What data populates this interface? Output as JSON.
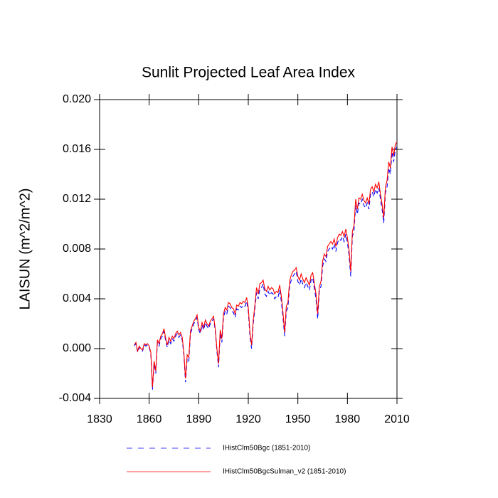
{
  "chart_data": {
    "type": "line",
    "title": "Sunlit Projected Leaf Area Index",
    "ylabel": "LAISUN  (m^2/m^2)",
    "xlim": [
      1830,
      2010
    ],
    "xticks": [
      1830,
      1860,
      1890,
      1920,
      1950,
      1980,
      2010
    ],
    "ylim": [
      -0.004,
      0.02
    ],
    "yticks": [
      -0.004,
      {
        "value": 0,
        "label": "0.000"
      },
      0.004,
      0.008,
      0.012,
      0.016,
      {
        "value": 0.02,
        "label": "0.020"
      }
    ],
    "legend": "bottom",
    "x": [
      1851,
      1852,
      1853,
      1854,
      1855,
      1856,
      1857,
      1858,
      1859,
      1860,
      1861,
      1862,
      1863,
      1864,
      1865,
      1866,
      1867,
      1868,
      1869,
      1870,
      1871,
      1872,
      1873,
      1874,
      1875,
      1876,
      1877,
      1878,
      1879,
      1880,
      1881,
      1882,
      1883,
      1884,
      1885,
      1886,
      1887,
      1888,
      1889,
      1890,
      1891,
      1892,
      1893,
      1894,
      1895,
      1896,
      1897,
      1898,
      1899,
      1900,
      1901,
      1902,
      1903,
      1904,
      1905,
      1906,
      1907,
      1908,
      1909,
      1910,
      1911,
      1912,
      1913,
      1914,
      1915,
      1916,
      1917,
      1918,
      1919,
      1920,
      1921,
      1922,
      1923,
      1924,
      1925,
      1926,
      1927,
      1928,
      1929,
      1930,
      1931,
      1932,
      1933,
      1934,
      1935,
      1936,
      1937,
      1938,
      1939,
      1940,
      1941,
      1942,
      1943,
      1944,
      1945,
      1946,
      1947,
      1948,
      1949,
      1950,
      1951,
      1952,
      1953,
      1954,
      1955,
      1956,
      1957,
      1958,
      1959,
      1960,
      1961,
      1962,
      1963,
      1964,
      1965,
      1966,
      1967,
      1968,
      1969,
      1970,
      1971,
      1972,
      1973,
      1974,
      1975,
      1976,
      1977,
      1978,
      1979,
      1980,
      1981,
      1982,
      1983,
      1984,
      1985,
      1986,
      1987,
      1988,
      1989,
      1990,
      1991,
      1992,
      1993,
      1994,
      1995,
      1996,
      1997,
      1998,
      1999,
      2000,
      2001,
      2002,
      2003,
      2004,
      2005,
      2006,
      2007,
      2008,
      2009,
      2010
    ],
    "series": [
      {
        "name": "IHistClm50Bgc (1851-2010)",
        "color": "#0000ff",
        "line_style": "dashed",
        "values": [
          0.0002,
          0.0004,
          -0.0003,
          0.0001,
          -0.0001,
          -0.0002,
          0.0003,
          0.0002,
          0.0003,
          0.0001,
          -0.0004,
          -0.0033,
          -0.0012,
          -0.002,
          0.0005,
          0.0002,
          0.0008,
          0.001,
          0.0014,
          0.0006,
          0.0001,
          0.0007,
          0.0004,
          0.0008,
          0.0006,
          0.001,
          0.0012,
          0.0009,
          0.0011,
          0.0007,
          -0.0005,
          -0.0027,
          -0.0008,
          -0.001,
          0.0012,
          0.0016,
          0.002,
          0.0022,
          0.0025,
          0.0015,
          0.0012,
          0.0019,
          0.0015,
          0.0021,
          0.0018,
          0.0016,
          0.002,
          0.0022,
          0.0024,
          0.0014,
          -0.0002,
          -0.0015,
          0.0012,
          0.0005,
          0.0025,
          0.003,
          0.0028,
          0.0034,
          0.0033,
          0.003,
          0.0029,
          0.0025,
          0.0032,
          0.0031,
          0.0034,
          0.0033,
          0.0035,
          0.0034,
          0.0038,
          0.003,
          0.001,
          0.0,
          0.002,
          0.0032,
          0.0045,
          0.004,
          0.0048,
          0.0049,
          0.0052,
          0.0044,
          0.0042,
          0.0046,
          0.0043,
          0.0045,
          0.0044,
          0.004,
          0.0042,
          0.0041,
          0.0047,
          0.0038,
          0.0025,
          0.001,
          0.003,
          0.0033,
          0.005,
          0.0055,
          0.0058,
          0.006,
          0.0062,
          0.0054,
          0.0051,
          0.0056,
          0.0052,
          0.0049,
          0.0053,
          0.005,
          0.0047,
          0.0055,
          0.0057,
          0.0048,
          0.004,
          0.0024,
          0.0046,
          0.005,
          0.0066,
          0.0072,
          0.007,
          0.0078,
          0.008,
          0.0082,
          0.008,
          0.0084,
          0.0078,
          0.0085,
          0.0088,
          0.0087,
          0.009,
          0.0086,
          0.0092,
          0.0085,
          0.0075,
          0.0058,
          0.009,
          0.0095,
          0.0115,
          0.0108,
          0.0117,
          0.0116,
          0.012,
          0.0115,
          0.0113,
          0.0117,
          0.0112,
          0.0124,
          0.0126,
          0.0122,
          0.0128,
          0.0125,
          0.0129,
          0.012,
          0.0112,
          0.0101,
          0.0125,
          0.013,
          0.0145,
          0.014,
          0.0158,
          0.015,
          0.016,
          0.0162
        ]
      },
      {
        "name": "IHistClm50BgcSulman_v2 (1851-2010)",
        "color": "#ff0000",
        "line_style": "solid",
        "values": [
          0.0003,
          0.0005,
          -0.0002,
          0.0002,
          0.0,
          -0.0001,
          0.0004,
          0.0003,
          0.0004,
          0.0002,
          -0.0003,
          -0.0031,
          -0.001,
          -0.0018,
          0.0007,
          0.0004,
          0.001,
          0.0012,
          0.0016,
          0.0008,
          0.0003,
          0.0009,
          0.0006,
          0.001,
          0.0008,
          0.0012,
          0.0014,
          0.0011,
          0.0013,
          0.0009,
          -0.0003,
          -0.0024,
          -0.0005,
          -0.0007,
          0.0014,
          0.0018,
          0.0022,
          0.0024,
          0.0027,
          0.0017,
          0.0014,
          0.0021,
          0.0017,
          0.0023,
          0.002,
          0.0018,
          0.0022,
          0.0024,
          0.0026,
          0.0016,
          0.0,
          -0.0012,
          0.0015,
          0.0008,
          0.0028,
          0.0033,
          0.0031,
          0.0037,
          0.0036,
          0.0033,
          0.0032,
          0.0028,
          0.0035,
          0.0034,
          0.0037,
          0.0036,
          0.0038,
          0.0037,
          0.0041,
          0.0033,
          0.0013,
          0.0003,
          0.0023,
          0.0035,
          0.0049,
          0.0044,
          0.0052,
          0.0053,
          0.0055,
          0.0048,
          0.0046,
          0.005,
          0.0047,
          0.0049,
          0.0048,
          0.0044,
          0.0046,
          0.0045,
          0.0051,
          0.0042,
          0.0029,
          0.0013,
          0.0034,
          0.0037,
          0.0054,
          0.0059,
          0.0062,
          0.0063,
          0.0065,
          0.0058,
          0.0055,
          0.006,
          0.0056,
          0.0053,
          0.0057,
          0.0054,
          0.0051,
          0.0059,
          0.0061,
          0.0052,
          0.0044,
          0.0028,
          0.005,
          0.0054,
          0.007,
          0.0076,
          0.0074,
          0.0082,
          0.0084,
          0.0086,
          0.0084,
          0.0088,
          0.0082,
          0.0089,
          0.0092,
          0.0091,
          0.0094,
          0.009,
          0.0096,
          0.0089,
          0.0079,
          0.0062,
          0.0094,
          0.0099,
          0.012,
          0.0112,
          0.0121,
          0.012,
          0.0124,
          0.0119,
          0.0117,
          0.0121,
          0.0116,
          0.0128,
          0.013,
          0.0126,
          0.0132,
          0.0129,
          0.0134,
          0.0124,
          0.0116,
          0.0105,
          0.013,
          0.0135,
          0.015,
          0.0145,
          0.0162,
          0.0155,
          0.0164,
          0.0166
        ]
      }
    ]
  }
}
